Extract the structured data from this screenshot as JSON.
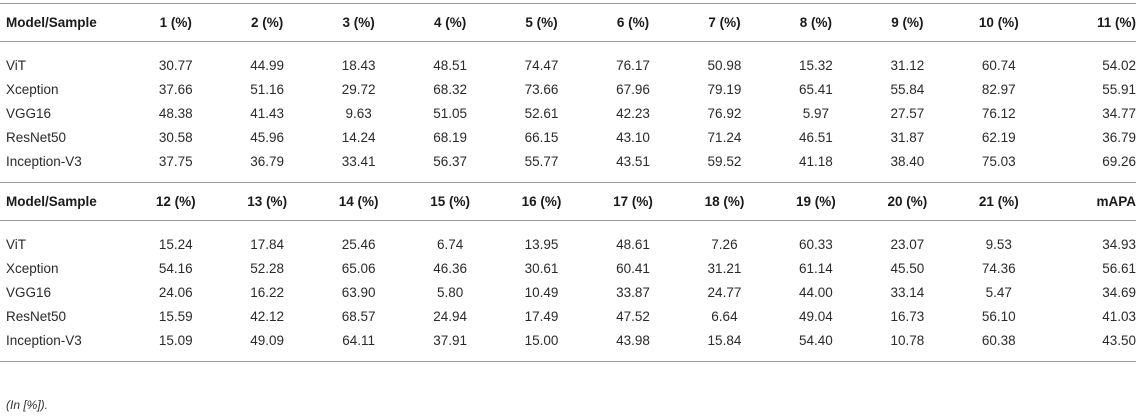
{
  "table": {
    "blocks": [
      {
        "headers": [
          "Model/Sample",
          "1 (%)",
          "2 (%)",
          "3 (%)",
          "4 (%)",
          "5 (%)",
          "6 (%)",
          "7 (%)",
          "8 (%)",
          "9 (%)",
          "10 (%)",
          "11 (%)"
        ],
        "rows": [
          [
            "ViT",
            "30.77",
            "44.99",
            "18.43",
            "48.51",
            "74.47",
            "76.17",
            "50.98",
            "15.32",
            "31.12",
            "60.74",
            "54.02"
          ],
          [
            "Xception",
            "37.66",
            "51.16",
            "29.72",
            "68.32",
            "73.66",
            "67.96",
            "79.19",
            "65.41",
            "55.84",
            "82.97",
            "55.91"
          ],
          [
            "VGG16",
            "48.38",
            "41.43",
            "9.63",
            "51.05",
            "52.61",
            "42.23",
            "76.92",
            "5.97",
            "27.57",
            "76.12",
            "34.77"
          ],
          [
            "ResNet50",
            "30.58",
            "45.96",
            "14.24",
            "68.19",
            "66.15",
            "43.10",
            "71.24",
            "46.51",
            "31.87",
            "62.19",
            "36.79"
          ],
          [
            "Inception-V3",
            "37.75",
            "36.79",
            "33.41",
            "56.37",
            "55.77",
            "43.51",
            "59.52",
            "41.18",
            "38.40",
            "75.03",
            "69.26"
          ]
        ]
      },
      {
        "headers": [
          "Model/Sample",
          "12 (%)",
          "13 (%)",
          "14 (%)",
          "15 (%)",
          "16 (%)",
          "17 (%)",
          "18 (%)",
          "19 (%)",
          "20 (%)",
          "21 (%)",
          "mAPA"
        ],
        "rows": [
          [
            "ViT",
            "15.24",
            "17.84",
            "25.46",
            "6.74",
            "13.95",
            "48.61",
            "7.26",
            "60.33",
            "23.07",
            "9.53",
            "34.93"
          ],
          [
            "Xception",
            "54.16",
            "52.28",
            "65.06",
            "46.36",
            "30.61",
            "60.41",
            "31.21",
            "61.14",
            "45.50",
            "74.36",
            "56.61"
          ],
          [
            "VGG16",
            "24.06",
            "16.22",
            "63.90",
            "5.80",
            "10.49",
            "33.87",
            "24.77",
            "44.00",
            "33.14",
            "5.47",
            "34.69"
          ],
          [
            "ResNet50",
            "15.59",
            "42.12",
            "68.57",
            "24.94",
            "17.49",
            "47.52",
            "6.64",
            "49.04",
            "16.73",
            "56.10",
            "41.03"
          ],
          [
            "Inception-V3",
            "15.09",
            "49.09",
            "64.11",
            "37.91",
            "15.00",
            "43.98",
            "15.84",
            "54.40",
            "10.78",
            "60.38",
            "43.50"
          ]
        ]
      }
    ]
  },
  "footnote": "(In [%])."
}
